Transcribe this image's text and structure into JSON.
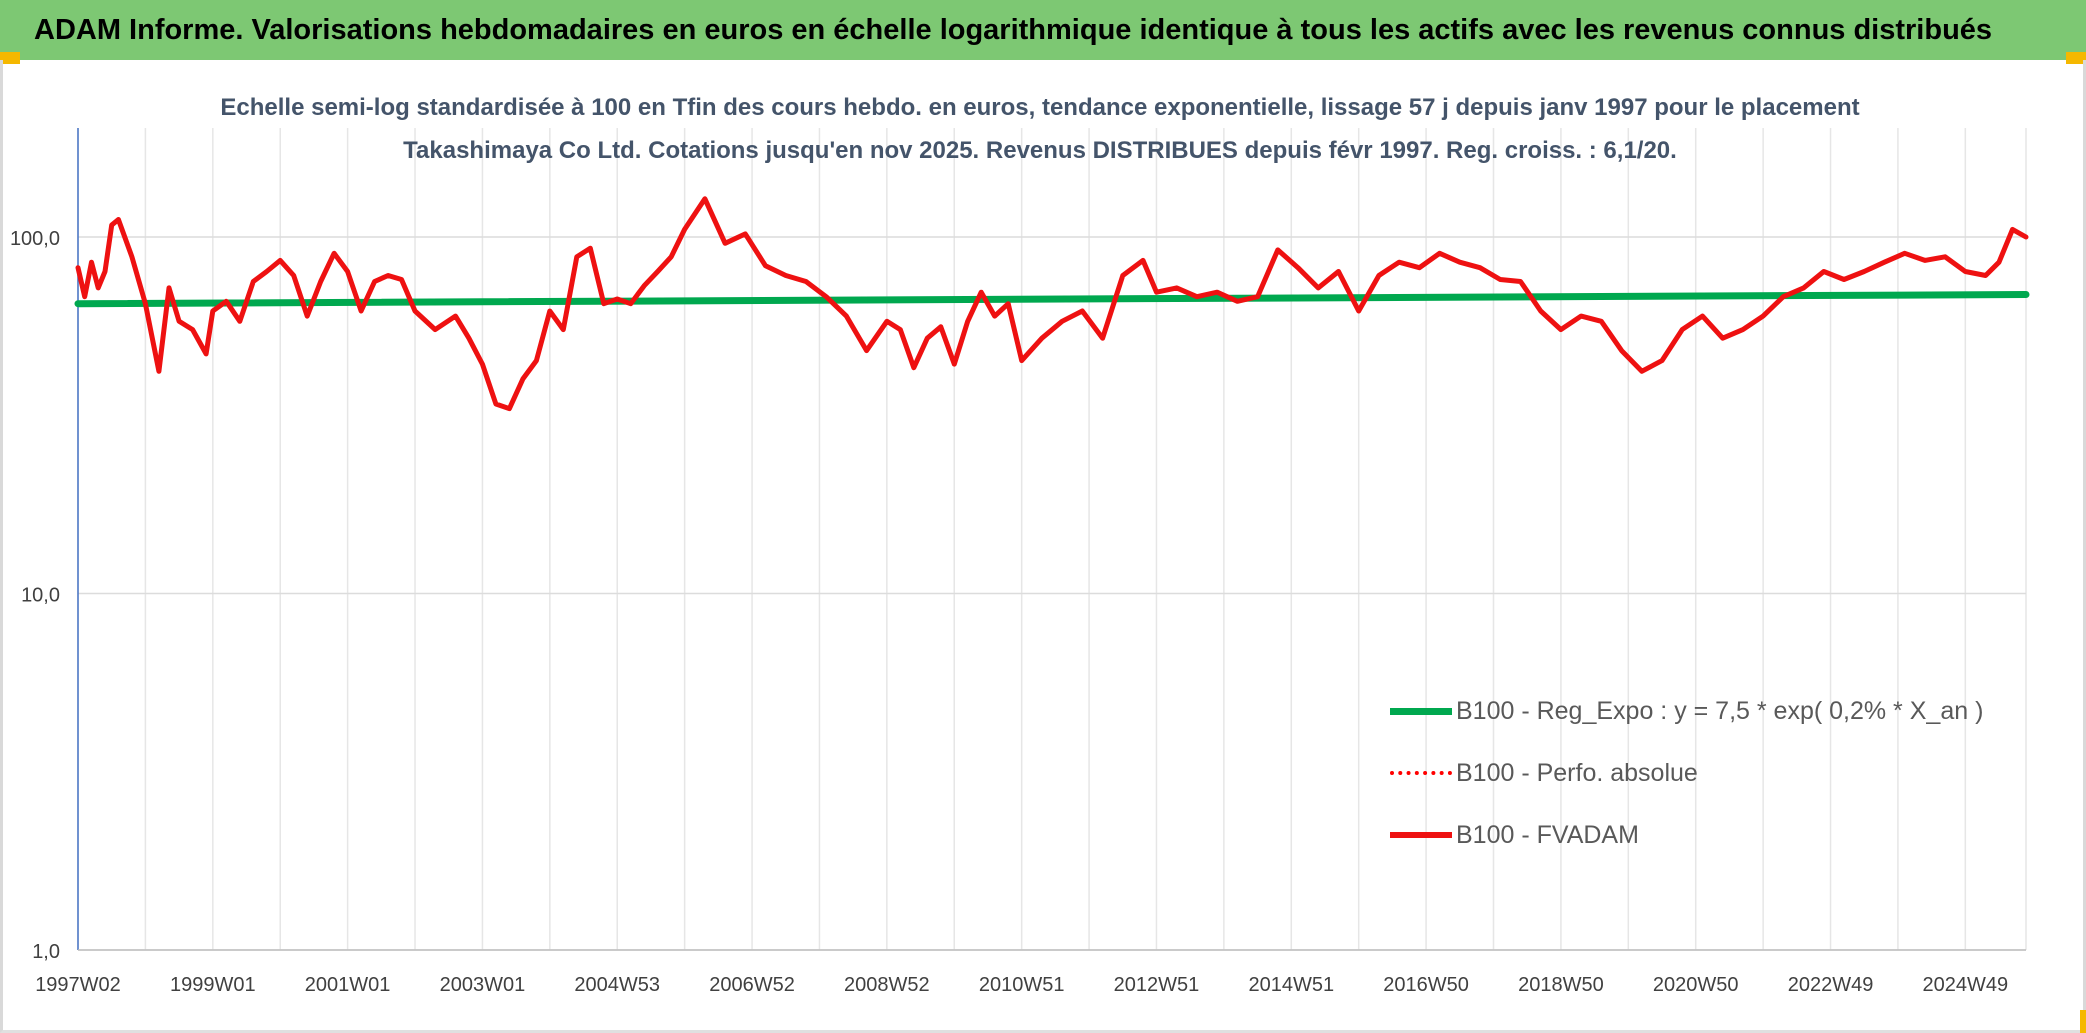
{
  "header": {
    "title": "ADAM Informe. Valorisations hebdomadaires en euros en échelle logarithmique identique à tous les actifs avec les revenus connus distribués"
  },
  "chart_data": {
    "type": "line",
    "title": "Echelle semi-log standardisée à 100 en Tfin des cours hebdo. en euros, tendance exponentielle, lissage 57 j depuis janv 1997 pour le placement Takashimaya Co Ltd. Cotations jusqu'en nov 2025. Revenus DISTRIBUES depuis févr 1997. Reg. croiss. : 6,1/20.",
    "xlabel": "",
    "ylabel": "",
    "y_scale": "log",
    "ylim": [
      1,
      200
    ],
    "y_ticks": [
      {
        "value": 1,
        "label": "1,0"
      },
      {
        "value": 10,
        "label": "10,0"
      },
      {
        "value": 100,
        "label": "100,0"
      }
    ],
    "x_ticks": [
      "1997W02",
      "1999W01",
      "2001W01",
      "2003W01",
      "2004W53",
      "2006W52",
      "2008W52",
      "2010W51",
      "2012W51",
      "2014W51",
      "2016W50",
      "2018W50",
      "2020W50",
      "2022W49",
      "2024W49"
    ],
    "x_tick_years": [
      1997.0,
      1999.0,
      2001.0,
      2003.0,
      2005.0,
      2007.0,
      2009.0,
      2011.0,
      2013.0,
      2015.0,
      2017.0,
      2019.0,
      2021.0,
      2023.0,
      2025.0
    ],
    "xlim": [
      1997.0,
      2025.9
    ],
    "grid": true,
    "legend_position": "bottom-right",
    "series": [
      {
        "name": "B100 - Reg_Expo : y = 7,5 * exp( 0,2% *  X_an )",
        "style": "solid-thick",
        "color": "#00a84f",
        "x": [
          1997.0,
          2025.9
        ],
        "values": [
          65,
          69
        ]
      },
      {
        "name": "B100 - Perfo. absolue",
        "style": "dotted",
        "color": "#ff0000",
        "x": [],
        "values": []
      },
      {
        "name": "B100 - FVADAM",
        "style": "solid",
        "color": "#ee1111",
        "x": [
          1997.0,
          1997.1,
          1997.2,
          1997.3,
          1997.4,
          1997.5,
          1997.6,
          1997.8,
          1998.0,
          1998.2,
          1998.35,
          1998.5,
          1998.7,
          1998.9,
          1999.0,
          1999.2,
          1999.4,
          1999.6,
          1999.8,
          2000.0,
          2000.2,
          2000.4,
          2000.6,
          2000.8,
          2001.0,
          2001.2,
          2001.4,
          2001.6,
          2001.8,
          2002.0,
          2002.3,
          2002.6,
          2002.8,
          2003.0,
          2003.2,
          2003.4,
          2003.6,
          2003.8,
          2004.0,
          2004.2,
          2004.4,
          2004.6,
          2004.8,
          2005.0,
          2005.2,
          2005.4,
          2005.6,
          2005.8,
          2006.0,
          2006.3,
          2006.6,
          2006.9,
          2007.2,
          2007.5,
          2007.8,
          2008.1,
          2008.4,
          2008.7,
          2009.0,
          2009.2,
          2009.4,
          2009.6,
          2009.8,
          2010.0,
          2010.2,
          2010.4,
          2010.6,
          2010.8,
          2011.0,
          2011.3,
          2011.6,
          2011.9,
          2012.2,
          2012.5,
          2012.8,
          2013.0,
          2013.3,
          2013.6,
          2013.9,
          2014.2,
          2014.5,
          2014.8,
          2015.1,
          2015.4,
          2015.7,
          2016.0,
          2016.3,
          2016.6,
          2016.9,
          2017.2,
          2017.5,
          2017.8,
          2018.1,
          2018.4,
          2018.7,
          2019.0,
          2019.3,
          2019.6,
          2019.9,
          2020.2,
          2020.5,
          2020.8,
          2021.1,
          2021.4,
          2021.7,
          2022.0,
          2022.3,
          2022.6,
          2022.9,
          2023.2,
          2023.5,
          2023.8,
          2024.1,
          2024.4,
          2024.7,
          2025.0,
          2025.3,
          2025.5,
          2025.7,
          2025.9
        ],
        "values": [
          82,
          68,
          85,
          72,
          80,
          108,
          112,
          88,
          65,
          42,
          72,
          58,
          55,
          47,
          62,
          66,
          58,
          75,
          80,
          86,
          78,
          60,
          75,
          90,
          80,
          62,
          75,
          78,
          76,
          62,
          55,
          60,
          52,
          44,
          34,
          33,
          40,
          45,
          62,
          55,
          88,
          93,
          65,
          67,
          65,
          73,
          80,
          88,
          105,
          128,
          96,
          102,
          83,
          78,
          75,
          68,
          60,
          48,
          58,
          55,
          43,
          52,
          56,
          44,
          58,
          70,
          60,
          65,
          45,
          52,
          58,
          62,
          52,
          78,
          86,
          70,
          72,
          68,
          70,
          66,
          68,
          92,
          82,
          72,
          80,
          62,
          78,
          85,
          82,
          90,
          85,
          82,
          76,
          75,
          62,
          55,
          60,
          58,
          48,
          42,
          45,
          55,
          60,
          52,
          55,
          60,
          68,
          72,
          80,
          76,
          80,
          85,
          90,
          86,
          88,
          80,
          78,
          85,
          105,
          100
        ]
      }
    ]
  }
}
